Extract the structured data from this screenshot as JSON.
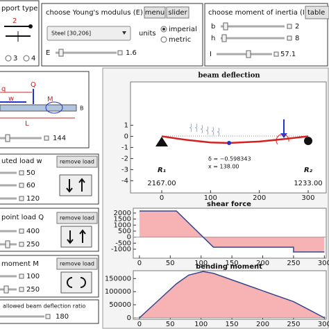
{
  "support_panel": {
    "title": "pport type",
    "icon_label": "2",
    "options": [
      "3",
      "4"
    ]
  },
  "modulus_panel": {
    "title": "choose Young's modulus (E) from",
    "buttons": [
      "menu",
      "slider"
    ],
    "material": "Steel [30,206]",
    "units_label": "units",
    "units": [
      "imperial",
      "metric"
    ],
    "E_label": "E",
    "E_value": 1.6
  },
  "inertia_panel": {
    "title": "choose moment of inertia (I) from",
    "button": "table",
    "b_label": "b",
    "b_value": 2,
    "h_label": "h",
    "h_value": 8,
    "I_label": "I",
    "I_value": 57.1
  },
  "beam_panel": {
    "labels": [
      "q",
      "Q",
      "w",
      "M",
      "L",
      "B"
    ],
    "length": 144
  },
  "distributed_panel": {
    "title": "uted load w",
    "button": "remove load",
    "values": [
      50,
      60,
      120
    ]
  },
  "point_panel": {
    "title": "point load Q",
    "button": "remove load",
    "values": [
      400,
      250
    ]
  },
  "moment_panel": {
    "title": "moment M",
    "button": "remove load",
    "values": [
      100,
      250
    ]
  },
  "ratio_panel": {
    "title": "allowed beam deflection ratio",
    "value": 180
  },
  "plots": [
    {
      "type": "line",
      "title": "beam deflection",
      "x": [
        0,
        50,
        100,
        138,
        200,
        250,
        300
      ],
      "values": [
        0,
        -0.32,
        -0.55,
        -0.598343,
        -0.47,
        -0.25,
        0
      ],
      "color": "#d42020",
      "xlim": [
        -64,
        337
      ],
      "ylim": [
        -5.1,
        4.9
      ],
      "xticks": [
        0,
        100,
        200,
        300
      ],
      "yticks": [
        1,
        0,
        -1,
        -2,
        -3,
        -4
      ],
      "annotations": [
        "δ = −0.598343",
        "x = 138.00"
      ],
      "reactions": [
        {
          "label": "R₁",
          "value": "2167.00"
        },
        {
          "label": "R₂",
          "value": "1233.00"
        }
      ]
    },
    {
      "type": "area",
      "title": "shear force",
      "x": [
        0,
        60,
        120,
        250,
        250,
        300
      ],
      "values": [
        2167,
        2167,
        -833,
        -833,
        -1233,
        -1233
      ],
      "color": "#35468c",
      "fill": "#f7b3b3",
      "xlim": [
        -10,
        303
      ],
      "ylim": [
        -1750,
        2400
      ],
      "xticks": [
        0,
        50,
        100,
        150,
        200,
        250,
        300
      ],
      "yticks": [
        2000,
        1500,
        1000,
        500,
        0,
        -500,
        -1000
      ]
    },
    {
      "type": "area",
      "title": "bending moment",
      "x": [
        0,
        30,
        60,
        80,
        103.3,
        120,
        180,
        250,
        275,
        300
      ],
      "values": [
        0,
        65010,
        130020,
        163360,
        176979,
        170040,
        120060,
        61750,
        30925,
        0
      ],
      "color": "#35468c",
      "fill": "#f7b3b3",
      "xlim": [
        -10,
        303
      ],
      "ylim": [
        -5600,
        180000
      ],
      "xticks": [
        0,
        50,
        100,
        150,
        200,
        250,
        300
      ],
      "yticks": [
        150000,
        100000,
        50000,
        0
      ]
    }
  ]
}
